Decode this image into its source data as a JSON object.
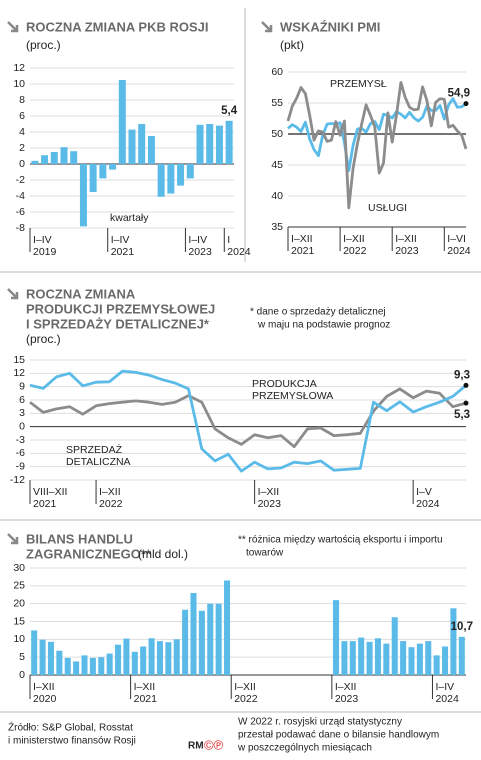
{
  "chart_data": [
    {
      "type": "bar",
      "title": [
        "ROCZNA ZMIANA PKB ROSJI"
      ],
      "subtitle": "(proc.)",
      "annotation": "kwartały",
      "color": "#5bbbe8",
      "categories": [
        "I–IV",
        null,
        null,
        null,
        null,
        null,
        null,
        null,
        "I–IV",
        null,
        null,
        null,
        null,
        null,
        null,
        null,
        "I–IV",
        null,
        null,
        null,
        "I"
      ],
      "category_years": [
        "2019",
        null,
        null,
        null,
        null,
        null,
        null,
        null,
        "2021",
        null,
        null,
        null,
        null,
        null,
        null,
        null,
        "2023",
        null,
        null,
        null,
        "2024"
      ],
      "values": [
        0.4,
        1.1,
        1.5,
        2.1,
        1.6,
        -7.8,
        -3.5,
        -1.8,
        -0.7,
        10.5,
        4.3,
        5.0,
        3.5,
        -4.1,
        -3.7,
        -2.7,
        -1.8,
        4.9,
        5.0,
        4.8,
        5.4
      ],
      "value_labels": [
        null,
        null,
        null,
        null,
        null,
        null,
        null,
        null,
        null,
        null,
        null,
        null,
        null,
        null,
        null,
        null,
        null,
        null,
        null,
        null,
        "5,4"
      ],
      "ylim": [
        -8,
        12
      ],
      "yticks": [
        -8,
        -6,
        -4,
        -2,
        0,
        2,
        4,
        6,
        8,
        10,
        12
      ],
      "grid": true
    },
    {
      "type": "line",
      "title": [
        "WSKAŹNIKI PMI"
      ],
      "subtitle": "(pkt)",
      "categories": [
        "I–XII",
        null,
        null,
        null,
        null,
        null,
        null,
        null,
        null,
        null,
        null,
        null,
        "I–XII",
        null,
        null,
        null,
        null,
        null,
        null,
        null,
        null,
        null,
        null,
        null,
        "I–XII",
        null,
        null,
        null,
        null,
        null,
        null,
        null,
        null,
        null,
        null,
        null,
        "I–VI",
        null,
        null,
        null,
        null,
        null
      ],
      "category_years": [
        "2021",
        null,
        null,
        null,
        null,
        null,
        null,
        null,
        null,
        null,
        null,
        null,
        "2022",
        null,
        null,
        null,
        null,
        null,
        null,
        null,
        null,
        null,
        null,
        null,
        "2023",
        null,
        null,
        null,
        null,
        null,
        null,
        null,
        null,
        null,
        null,
        null,
        "2024",
        null,
        null,
        null,
        null,
        null
      ],
      "series": [
        {
          "name": "PRZEMYSŁ",
          "color": "#5bbbe8",
          "values": [
            50.9,
            51.5,
            51.1,
            50.4,
            51.9,
            49.2,
            47.5,
            46.5,
            49.8,
            51.6,
            51.7,
            51.6,
            51.8,
            48.6,
            44.1,
            48.2,
            50.8,
            50.9,
            50.3,
            51.7,
            52.0,
            50.7,
            53.2,
            53.0,
            52.6,
            53.6,
            53.2,
            52.6,
            53.5,
            52.6,
            52.1,
            52.7,
            54.5,
            53.8,
            53.8,
            54.6,
            52.4,
            54.7,
            55.7,
            54.3,
            54.4,
            54.9
          ],
          "value_labels": [
            null,
            null,
            null,
            null,
            null,
            null,
            null,
            null,
            null,
            null,
            null,
            null,
            null,
            null,
            null,
            null,
            null,
            null,
            null,
            null,
            null,
            null,
            null,
            null,
            null,
            null,
            null,
            null,
            null,
            null,
            null,
            null,
            null,
            null,
            null,
            null,
            null,
            null,
            null,
            null,
            null,
            "54,9"
          ]
        },
        {
          "name": "USŁUGI",
          "color": "#8c8c8c",
          "values": [
            52.1,
            54.5,
            55.8,
            57.5,
            56.5,
            53.0,
            49.0,
            50.5,
            50.3,
            48.8,
            49.0,
            52.0,
            49.8,
            52.1,
            38.1,
            44.5,
            48.5,
            51.7,
            54.7,
            53.0,
            51.1,
            43.7,
            45.3,
            53.4,
            48.7,
            53.1,
            58.3,
            55.9,
            54.3,
            53.9,
            54.0,
            57.6,
            55.4,
            51.3,
            55.1,
            55.7,
            55.6,
            51.1,
            51.4,
            50.5,
            49.8,
            47.6
          ]
        }
      ],
      "reference_line": 50,
      "ylim": [
        35,
        60
      ],
      "yticks": [
        35,
        40,
        45,
        50,
        55,
        60
      ],
      "grid": true
    },
    {
      "type": "line",
      "title": [
        "ROCZNA ZMIANA",
        "PRODUKCJI PRZEMYSŁOWEJ",
        "I SPRZEDAŻY DETALICZNEJ*"
      ],
      "subtitle": "(proc.)",
      "note": [
        "* dane o sprzedaży detalicznej",
        "w maju na podstawie prognoz"
      ],
      "categories": [
        "VIII–XII",
        null,
        null,
        null,
        null,
        "I–XII",
        null,
        null,
        null,
        null,
        null,
        null,
        null,
        null,
        null,
        null,
        null,
        "I–XII",
        null,
        null,
        null,
        null,
        null,
        null,
        null,
        null,
        null,
        null,
        null,
        "I–V",
        null,
        null,
        null,
        null
      ],
      "category_years": [
        "2021",
        null,
        null,
        null,
        null,
        "2022",
        null,
        null,
        null,
        null,
        null,
        null,
        null,
        null,
        null,
        null,
        null,
        "2023",
        null,
        null,
        null,
        null,
        null,
        null,
        null,
        null,
        null,
        null,
        null,
        "2024",
        null,
        null,
        null,
        null
      ],
      "series": [
        {
          "name": "PRODUKCJA PRZEMYSŁOWA",
          "color": "#8c8c8c",
          "values": [
            5.5,
            3.2,
            4.0,
            4.5,
            2.8,
            4.7,
            5.2,
            5.5,
            5.8,
            5.5,
            5.0,
            5.5,
            7.0,
            5.5,
            -0.5,
            -2.5,
            -4.0,
            -1.8,
            -2.5,
            -2.0,
            -4.5,
            -0.5,
            -0.3,
            -2.0,
            -1.8,
            -1.5,
            3.5,
            6.8,
            8.5,
            6.5,
            8.0,
            7.5,
            4.5,
            5.3
          ],
          "value_labels": [
            null,
            null,
            null,
            null,
            null,
            null,
            null,
            null,
            null,
            null,
            null,
            null,
            null,
            null,
            null,
            null,
            null,
            null,
            null,
            null,
            null,
            null,
            null,
            null,
            null,
            null,
            null,
            null,
            null,
            null,
            null,
            null,
            null,
            "5,3"
          ]
        },
        {
          "name": "SPRZEDAŻ DETALICZNA",
          "color": "#5bbbe8",
          "values": [
            9.3,
            8.6,
            11.2,
            12.0,
            9.2,
            10.0,
            10.1,
            12.5,
            12.2,
            11.6,
            10.6,
            9.8,
            8.5,
            -5.0,
            -7.7,
            -6.2,
            -10.0,
            -8.0,
            -9.5,
            -9.3,
            -8.0,
            -8.3,
            -7.7,
            -9.8,
            -9.6,
            -9.4,
            5.5,
            3.6,
            5.6,
            3.3,
            4.5,
            5.5,
            6.8,
            9.3
          ],
          "value_labels": [
            null,
            null,
            null,
            null,
            null,
            null,
            null,
            null,
            null,
            null,
            null,
            null,
            null,
            null,
            null,
            null,
            null,
            null,
            null,
            null,
            null,
            null,
            null,
            null,
            null,
            null,
            null,
            null,
            null,
            null,
            null,
            null,
            null,
            "9,3"
          ]
        }
      ],
      "ylim": [
        -12,
        15
      ],
      "yticks": [
        -12,
        -9,
        -6,
        -3,
        0,
        3,
        6,
        9,
        12,
        15
      ],
      "grid": true
    },
    {
      "type": "bar",
      "title": [
        "BILANS HANDLU",
        "ZAGRANICZNEGO**"
      ],
      "subtitle": "(mld dol.)",
      "color": "#5bbbe8",
      "note": [
        "** różnica między wartością eksportu i importu",
        "towarów"
      ],
      "categories": [
        "I–XII",
        null,
        null,
        null,
        null,
        null,
        null,
        null,
        null,
        null,
        null,
        null,
        "I–XII",
        null,
        null,
        null,
        null,
        null,
        null,
        null,
        null,
        null,
        null,
        null,
        "I–XII",
        null,
        null,
        null,
        null,
        null,
        null,
        null,
        null,
        null,
        null,
        null,
        "I–XII",
        null,
        null,
        null,
        null,
        null,
        null,
        null,
        null,
        null,
        null,
        null,
        "I–IV",
        null,
        null,
        null
      ],
      "category_years": [
        "2020",
        null,
        null,
        null,
        null,
        null,
        null,
        null,
        null,
        null,
        null,
        null,
        "2021",
        null,
        null,
        null,
        null,
        null,
        null,
        null,
        null,
        null,
        null,
        null,
        "2022",
        null,
        null,
        null,
        null,
        null,
        null,
        null,
        null,
        null,
        null,
        null,
        "2023",
        null,
        null,
        null,
        null,
        null,
        null,
        null,
        null,
        null,
        null,
        null,
        "2024",
        null,
        null,
        null
      ],
      "values": [
        12.5,
        9.9,
        9.3,
        6.8,
        4.8,
        3.8,
        5.5,
        4.8,
        5.0,
        6.0,
        8.5,
        10.2,
        6.5,
        8.0,
        10.3,
        9.5,
        9.2,
        10.0,
        18.3,
        23.0,
        18.0,
        20.0,
        20.0,
        26.5,
        null,
        null,
        null,
        null,
        null,
        null,
        null,
        null,
        null,
        null,
        null,
        null,
        21.0,
        9.5,
        9.5,
        10.5,
        9.3,
        10.3,
        8.8,
        16.2,
        9.5,
        7.8,
        8.8,
        9.5,
        5.5,
        8.0,
        18.7,
        10.7
      ],
      "value_labels": [
        null,
        null,
        null,
        null,
        null,
        null,
        null,
        null,
        null,
        null,
        null,
        null,
        null,
        null,
        null,
        null,
        null,
        null,
        null,
        null,
        null,
        null,
        null,
        null,
        null,
        null,
        null,
        null,
        null,
        null,
        null,
        null,
        null,
        null,
        null,
        null,
        null,
        null,
        null,
        null,
        null,
        null,
        null,
        null,
        null,
        null,
        null,
        null,
        null,
        null,
        null,
        "10,7"
      ],
      "ylim": [
        0,
        30
      ],
      "yticks": [
        0,
        5,
        10,
        15,
        20,
        25,
        30
      ],
      "grid": true
    }
  ],
  "footer": {
    "source": [
      "Źródło: S&P Global, Rosstat",
      "i ministerstwo finansów Rosji"
    ],
    "logo": "RM",
    "logo_symbols": "©℗",
    "note": [
      "W 2022 r. rosyjski urząd statystyczny",
      "przestał podawać dane o bilansie handlowym",
      "w poszczególnych miesiącach"
    ]
  }
}
